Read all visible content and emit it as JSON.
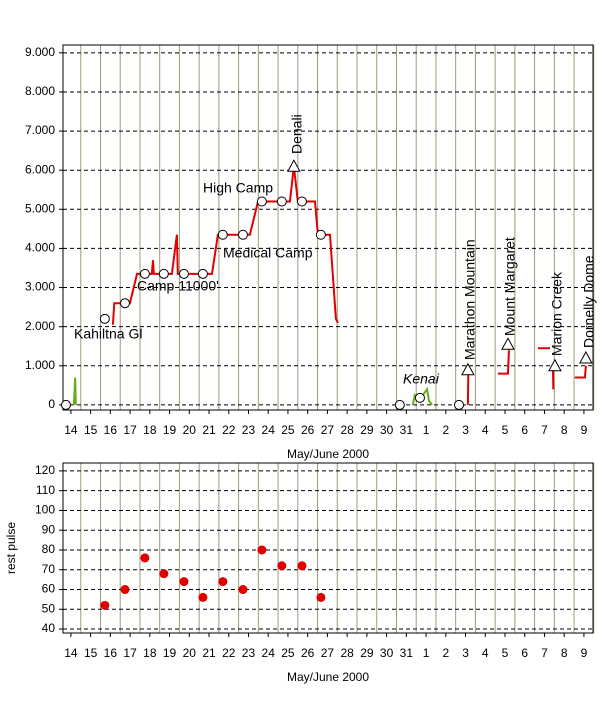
{
  "chart_data": [
    {
      "type": "line",
      "xlabel": "May/June 2000",
      "xlim": [
        13.6,
        40.46
      ],
      "xticks": [
        14,
        15,
        16,
        17,
        18,
        19,
        20,
        21,
        22,
        23,
        24,
        25,
        26,
        27,
        28,
        29,
        30,
        31,
        {
          "value": 32,
          "label": "1"
        },
        {
          "value": 33,
          "label": "2"
        },
        {
          "value": 34,
          "label": "3"
        },
        {
          "value": 35,
          "label": "4"
        },
        {
          "value": 36,
          "label": "5"
        },
        {
          "value": 37,
          "label": "6"
        },
        {
          "value": 38,
          "label": "7"
        },
        {
          "value": 39,
          "label": "8"
        },
        {
          "value": 40,
          "label": "9"
        }
      ],
      "ylim": [
        -130,
        9200
      ],
      "yticks": [
        0,
        {
          "value": 1000,
          "label": "1.000"
        },
        {
          "value": 2000,
          "label": "2.000"
        },
        {
          "value": 3000,
          "label": "3.000"
        },
        {
          "value": 4000,
          "label": "4.000"
        },
        {
          "value": 5000,
          "label": "5.000"
        },
        {
          "value": 6000,
          "label": "6.000"
        },
        {
          "value": 7000,
          "label": "7.000"
        },
        {
          "value": 8000,
          "label": "8.000"
        },
        {
          "value": 9000,
          "label": "9.000"
        }
      ],
      "grid": true,
      "series": [
        {
          "color": "#e00000",
          "x": [
            16.13,
            16.2,
            16.99,
            17.35,
            18.1,
            18.16,
            18.2,
            19.12,
            19.37,
            19.42,
            21.15,
            21.45,
            23.07,
            23.48,
            25.1,
            25.3,
            25.5,
            26.37,
            26.52,
            27.13,
            27.43,
            27.53,
            null,
            34.12,
            34.14,
            null,
            35.64,
            36.15,
            36.2,
            null,
            37.67,
            38.28,
            null,
            38.43,
            38.45,
            null,
            39.54,
            40.05,
            40.1
          ],
          "values": [
            2050,
            2600,
            2600,
            3350,
            3350,
            3700,
            3350,
            3350,
            4350,
            3350,
            3350,
            4350,
            4350,
            5200,
            5200,
            6100,
            5200,
            5200,
            4350,
            4350,
            2200,
            2100,
            null,
            0,
            800,
            null,
            800,
            800,
            1400,
            null,
            1450,
            1450,
            null,
            1000,
            400,
            null,
            700,
            700,
            1000
          ]
        },
        {
          "color": "#6aaa1a",
          "x": [
            14.15,
            14.22,
            14.25,
            null,
            31.33,
            31.43,
            31.7,
            32.05,
            32.15,
            32.3
          ],
          "values": [
            0,
            700,
            0,
            null,
            0,
            250,
            150,
            400,
            100,
            0
          ]
        }
      ],
      "points": [
        {
          "marker": "circle",
          "x": [
            13.75,
            15.72,
            16.74,
            17.75,
            18.71,
            19.73,
            20.69,
            21.7,
            22.72,
            23.68,
            24.69,
            25.71,
            26.67,
            30.67,
            31.69,
            33.67
          ],
          "values": [
            0,
            2200,
            2600,
            3350,
            3350,
            3350,
            3350,
            4350,
            4350,
            5200,
            5200,
            5200,
            4350,
            0,
            180,
            0
          ]
        },
        {
          "marker": "triangle",
          "x": [
            25.3,
            34.12,
            36.15,
            38.53,
            40.1
          ],
          "values": [
            6100,
            900,
            1550,
            1000,
            1200
          ]
        }
      ],
      "annotations": [
        "Kahiltna Gl",
        "Camp 11000'",
        "Medical Camp",
        "High Camp",
        "Denali",
        "Kenai",
        "Marathon Mountain",
        "Mount Margaret",
        "Marion Creek",
        "Dornelly Dome"
      ]
    },
    {
      "type": "scatter",
      "xlabel": "May/June 2000",
      "ylabel": "rest pulse",
      "xlim": [
        13.6,
        40.46
      ],
      "xticks": [
        14,
        15,
        16,
        17,
        18,
        19,
        20,
        21,
        22,
        23,
        24,
        25,
        26,
        27,
        28,
        29,
        30,
        31,
        {
          "value": 32,
          "label": "1"
        },
        {
          "value": 33,
          "label": "2"
        },
        {
          "value": 34,
          "label": "3"
        },
        {
          "value": 35,
          "label": "4"
        },
        {
          "value": 36,
          "label": "5"
        },
        {
          "value": 37,
          "label": "6"
        },
        {
          "value": 38,
          "label": "7"
        },
        {
          "value": 39,
          "label": "8"
        },
        {
          "value": 40,
          "label": "9"
        }
      ],
      "ylim": [
        38,
        124
      ],
      "yticks": [
        40,
        50,
        60,
        70,
        80,
        90,
        100,
        110,
        120
      ],
      "grid": true,
      "color": "#e00000",
      "x": [
        15.72,
        16.74,
        17.75,
        18.71,
        19.73,
        20.69,
        21.7,
        22.72,
        23.68,
        24.69,
        25.71,
        26.67
      ],
      "values": [
        52,
        60,
        76,
        68,
        64,
        56,
        64,
        60,
        80,
        72,
        72,
        56
      ]
    }
  ]
}
